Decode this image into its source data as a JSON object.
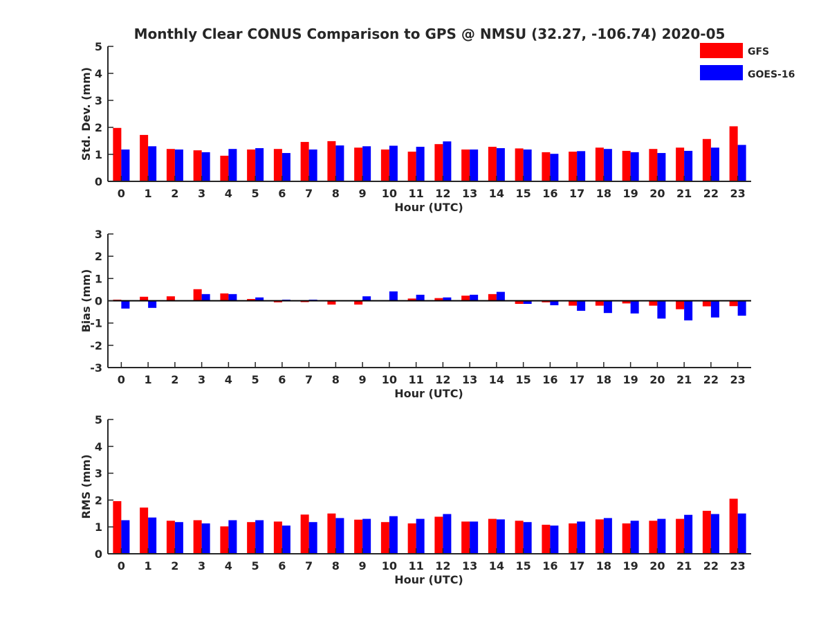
{
  "colors": {
    "gfs": "#ff0000",
    "goes": "#0000ff",
    "axis": "#262626"
  },
  "chart_data": {
    "title": "Monthly Clear CONUS Comparison to GPS @ NMSU (32.27, -106.74) 2020-05",
    "legend": {
      "placement": "top-right",
      "entries": [
        "GFS",
        "GOES-16"
      ]
    },
    "panels": [
      {
        "type": "bar",
        "id": "stddev",
        "ylabel": "Std. Dev. (mm)",
        "xlabel": "Hour (UTC)",
        "ylim": [
          0,
          5
        ],
        "yticks": [
          0,
          1,
          2,
          3,
          4,
          5
        ],
        "categories": [
          "0",
          "1",
          "2",
          "3",
          "4",
          "5",
          "6",
          "7",
          "8",
          "9",
          "10",
          "11",
          "12",
          "13",
          "14",
          "15",
          "16",
          "17",
          "18",
          "19",
          "20",
          "21",
          "22",
          "23"
        ],
        "series": [
          {
            "name": "GFS",
            "color": "#ff0000",
            "values": [
              1.98,
              1.72,
              1.2,
              1.15,
              0.95,
              1.18,
              1.2,
              1.46,
              1.49,
              1.25,
              1.18,
              1.1,
              1.38,
              1.18,
              1.28,
              1.22,
              1.08,
              1.1,
              1.25,
              1.13,
              1.2,
              1.25,
              1.57,
              2.04
            ]
          },
          {
            "name": "GOES-16",
            "color": "#0000ff",
            "values": [
              1.18,
              1.3,
              1.18,
              1.08,
              1.2,
              1.23,
              1.05,
              1.18,
              1.33,
              1.3,
              1.32,
              1.28,
              1.48,
              1.18,
              1.23,
              1.18,
              1.02,
              1.12,
              1.2,
              1.08,
              1.05,
              1.13,
              1.25,
              1.35
            ]
          }
        ]
      },
      {
        "type": "bar",
        "id": "bias",
        "ylabel": "Bias (mm)",
        "xlabel": "Hour (UTC)",
        "ylim": [
          -3,
          3
        ],
        "yticks": [
          -3,
          -2,
          -1,
          0,
          1,
          2,
          3
        ],
        "categories": [
          "0",
          "1",
          "2",
          "3",
          "4",
          "5",
          "6",
          "7",
          "8",
          "9",
          "10",
          "11",
          "12",
          "13",
          "14",
          "15",
          "16",
          "17",
          "18",
          "19",
          "20",
          "21",
          "22",
          "23"
        ],
        "series": [
          {
            "name": "GFS",
            "color": "#ff0000",
            "values": [
              0.05,
              0.18,
              0.2,
              0.52,
              0.33,
              0.08,
              -0.07,
              -0.06,
              -0.17,
              -0.17,
              0.0,
              0.1,
              0.12,
              0.23,
              0.3,
              -0.14,
              -0.07,
              -0.22,
              -0.22,
              -0.12,
              -0.22,
              -0.38,
              -0.25,
              -0.24
            ]
          },
          {
            "name": "GOES-16",
            "color": "#0000ff",
            "values": [
              -0.35,
              -0.32,
              0.0,
              0.3,
              0.3,
              0.15,
              0.05,
              0.05,
              -0.03,
              0.2,
              0.42,
              0.27,
              0.15,
              0.27,
              0.4,
              -0.14,
              -0.2,
              -0.45,
              -0.55,
              -0.57,
              -0.8,
              -0.88,
              -0.75,
              -0.67
            ]
          }
        ]
      },
      {
        "type": "bar",
        "id": "rms",
        "ylabel": "RMS (mm)",
        "xlabel": "Hour (UTC)",
        "ylim": [
          0,
          5
        ],
        "yticks": [
          0,
          1,
          2,
          3,
          4,
          5
        ],
        "categories": [
          "0",
          "1",
          "2",
          "3",
          "4",
          "5",
          "6",
          "7",
          "8",
          "9",
          "10",
          "11",
          "12",
          "13",
          "14",
          "15",
          "16",
          "17",
          "18",
          "19",
          "20",
          "21",
          "22",
          "23"
        ],
        "series": [
          {
            "name": "GFS",
            "color": "#ff0000",
            "values": [
              1.96,
              1.72,
              1.23,
              1.25,
              1.02,
              1.18,
              1.2,
              1.46,
              1.5,
              1.27,
              1.18,
              1.13,
              1.38,
              1.2,
              1.3,
              1.23,
              1.08,
              1.13,
              1.28,
              1.13,
              1.23,
              1.3,
              1.6,
              2.05
            ]
          },
          {
            "name": "GOES-16",
            "color": "#0000ff",
            "values": [
              1.25,
              1.35,
              1.18,
              1.13,
              1.25,
              1.25,
              1.05,
              1.18,
              1.33,
              1.3,
              1.4,
              1.3,
              1.48,
              1.2,
              1.28,
              1.18,
              1.05,
              1.2,
              1.33,
              1.23,
              1.3,
              1.45,
              1.48,
              1.5
            ]
          }
        ]
      }
    ]
  }
}
